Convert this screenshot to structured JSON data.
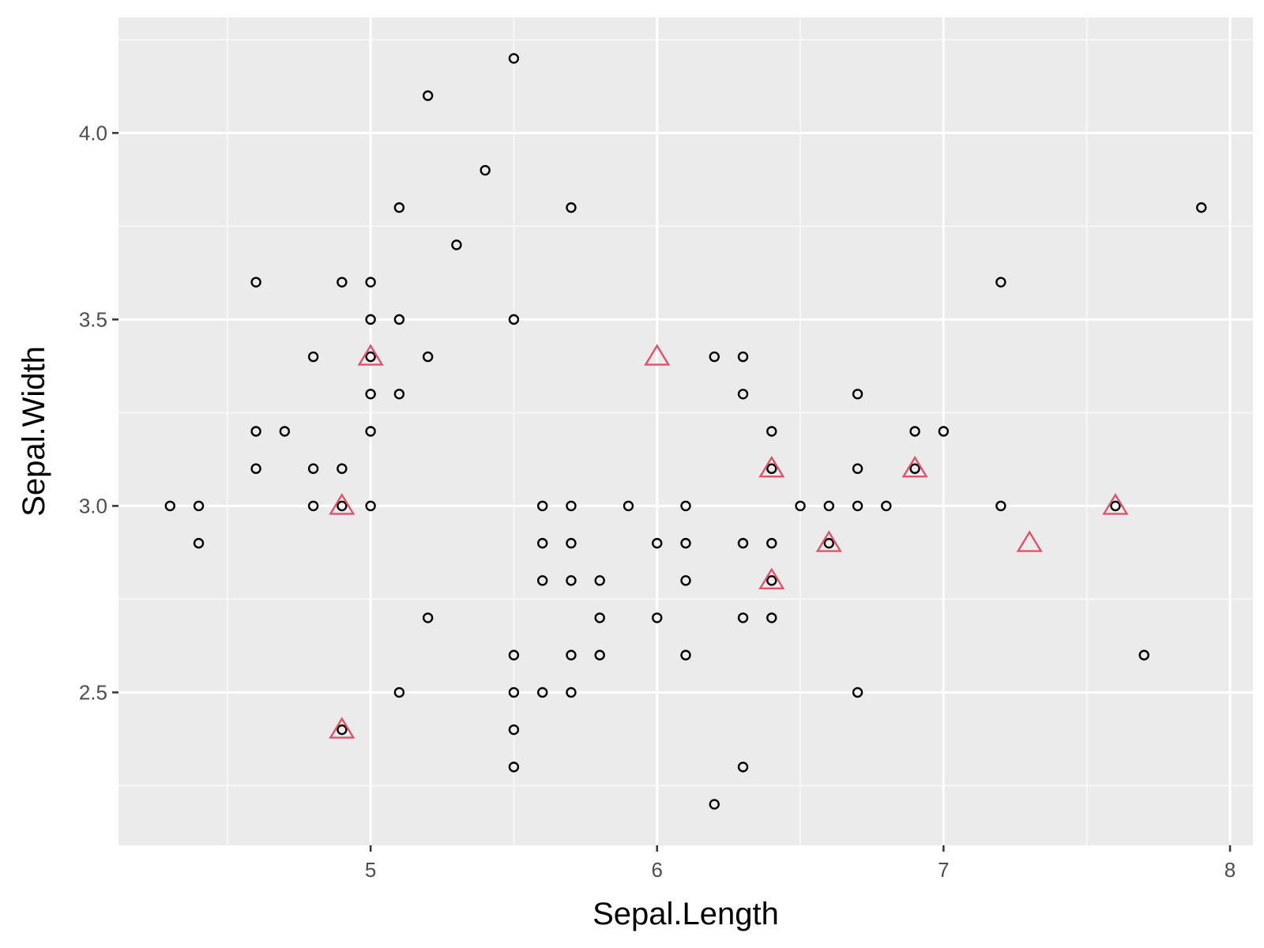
{
  "chart_data": {
    "type": "scatter",
    "title": "",
    "xlabel": "Sepal.Length",
    "ylabel": "Sepal.Width",
    "xlim": [
      4.12,
      8.08
    ],
    "ylim": [
      2.09,
      4.31
    ],
    "x_ticks": [
      5,
      6,
      7,
      8
    ],
    "x_tick_labels": [
      "5",
      "6",
      "7",
      "8"
    ],
    "y_ticks": [
      2.5,
      3.0,
      3.5,
      4.0
    ],
    "y_tick_labels": [
      "2.5",
      "3.0",
      "3.5",
      "4.0"
    ],
    "grid": true,
    "legend": "none",
    "colors": {
      "panel": "#ebebeb",
      "grid_major": "#ffffff",
      "grid_minor": "#f7f7f7",
      "circles": "#000000",
      "triangles": "#df536b"
    },
    "series": [
      {
        "marker": "circle",
        "points": [
          [
            5.5,
            4.2
          ],
          [
            5.2,
            4.1
          ],
          [
            5.4,
            3.9
          ],
          [
            5.1,
            3.8
          ],
          [
            5.7,
            3.8
          ],
          [
            7.9,
            3.8
          ],
          [
            5.3,
            3.7
          ],
          [
            4.6,
            3.6
          ],
          [
            4.9,
            3.6
          ],
          [
            5.0,
            3.6
          ],
          [
            7.2,
            3.6
          ],
          [
            5.0,
            3.5
          ],
          [
            5.1,
            3.5
          ],
          [
            5.5,
            3.5
          ],
          [
            4.8,
            3.4
          ],
          [
            5.0,
            3.4
          ],
          [
            5.2,
            3.4
          ],
          [
            6.2,
            3.4
          ],
          [
            6.3,
            3.4
          ],
          [
            5.0,
            3.3
          ],
          [
            5.1,
            3.3
          ],
          [
            6.3,
            3.3
          ],
          [
            6.7,
            3.3
          ],
          [
            4.6,
            3.2
          ],
          [
            4.7,
            3.2
          ],
          [
            5.0,
            3.2
          ],
          [
            6.4,
            3.2
          ],
          [
            6.9,
            3.2
          ],
          [
            7.0,
            3.2
          ],
          [
            4.6,
            3.1
          ],
          [
            4.8,
            3.1
          ],
          [
            4.9,
            3.1
          ],
          [
            6.4,
            3.1
          ],
          [
            6.7,
            3.1
          ],
          [
            6.9,
            3.1
          ],
          [
            4.3,
            3.0
          ],
          [
            4.4,
            3.0
          ],
          [
            4.8,
            3.0
          ],
          [
            4.9,
            3.0
          ],
          [
            5.0,
            3.0
          ],
          [
            5.6,
            3.0
          ],
          [
            5.7,
            3.0
          ],
          [
            5.9,
            3.0
          ],
          [
            6.1,
            3.0
          ],
          [
            6.5,
            3.0
          ],
          [
            6.6,
            3.0
          ],
          [
            6.7,
            3.0
          ],
          [
            6.8,
            3.0
          ],
          [
            7.2,
            3.0
          ],
          [
            7.6,
            3.0
          ],
          [
            4.4,
            2.9
          ],
          [
            5.6,
            2.9
          ],
          [
            5.7,
            2.9
          ],
          [
            6.0,
            2.9
          ],
          [
            6.1,
            2.9
          ],
          [
            6.3,
            2.9
          ],
          [
            6.4,
            2.9
          ],
          [
            6.6,
            2.9
          ],
          [
            5.6,
            2.8
          ],
          [
            5.7,
            2.8
          ],
          [
            5.8,
            2.8
          ],
          [
            6.1,
            2.8
          ],
          [
            6.4,
            2.8
          ],
          [
            5.2,
            2.7
          ],
          [
            5.8,
            2.7
          ],
          [
            6.0,
            2.7
          ],
          [
            6.3,
            2.7
          ],
          [
            6.4,
            2.7
          ],
          [
            5.5,
            2.6
          ],
          [
            5.7,
            2.6
          ],
          [
            5.8,
            2.6
          ],
          [
            6.1,
            2.6
          ],
          [
            7.7,
            2.6
          ],
          [
            5.1,
            2.5
          ],
          [
            5.5,
            2.5
          ],
          [
            5.6,
            2.5
          ],
          [
            5.7,
            2.5
          ],
          [
            6.7,
            2.5
          ],
          [
            4.9,
            2.4
          ],
          [
            5.5,
            2.4
          ],
          [
            5.5,
            2.3
          ],
          [
            6.3,
            2.3
          ],
          [
            6.2,
            2.2
          ]
        ]
      },
      {
        "marker": "triangle",
        "points": [
          [
            5.0,
            3.4
          ],
          [
            6.0,
            3.4
          ],
          [
            6.4,
            3.1
          ],
          [
            6.9,
            3.1
          ],
          [
            4.9,
            3.0
          ],
          [
            7.6,
            3.0
          ],
          [
            6.6,
            2.9
          ],
          [
            7.3,
            2.9
          ],
          [
            6.4,
            2.8
          ],
          [
            4.9,
            2.4
          ]
        ]
      }
    ]
  }
}
